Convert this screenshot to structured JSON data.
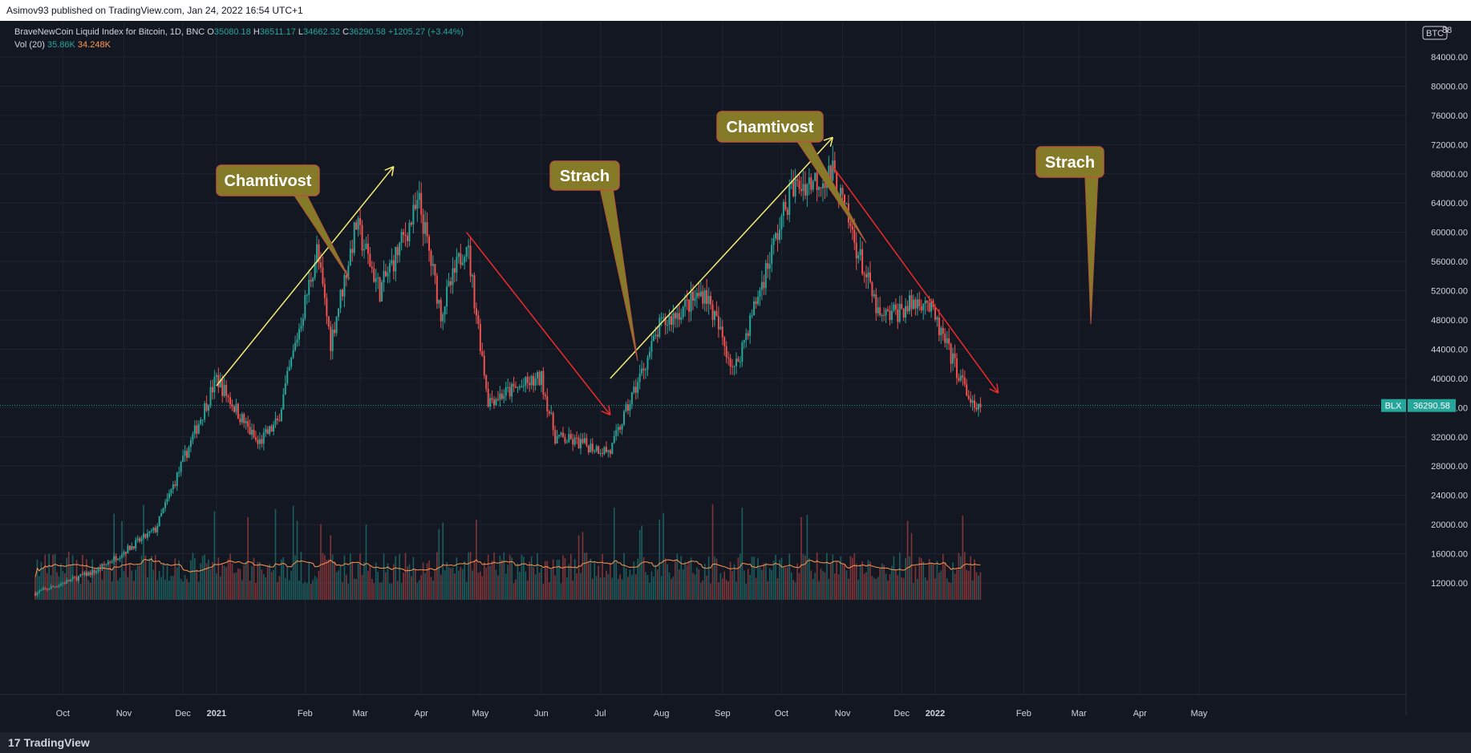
{
  "header": {
    "published": "Asimov93 published on TradingView.com, Jan 24, 2022 16:54 UTC+1"
  },
  "legend": {
    "symbol": "BraveNewCoin Liquid Index for Bitcoin, 1D, BNC",
    "o_label": "O",
    "o_value": "35080.18",
    "h_label": "H",
    "h_value": "36511.17",
    "l_label": "L",
    "l_value": "34662.32",
    "c_label": "C",
    "c_value": "36290.58",
    "change": "+1205.27 (+3.44%)",
    "vol_label": "Vol (20)",
    "vol_value": "35.86K",
    "vol_ma": "34.248K"
  },
  "price_badge": {
    "symbol": "BLX",
    "value": "36290.58"
  },
  "currency_badge": "BTC",
  "top_tick_partial": "88",
  "footer": {
    "brand": "TradingView",
    "brand_mark": "17"
  },
  "colors": {
    "background": "#131722",
    "up": "#26a69a",
    "down": "#ef5350",
    "grid": "#1f2331",
    "yellow_arrow": "#f5ec74",
    "red_arrow": "#ef2b2b",
    "callout_fill": "#857a28",
    "callout_border": "#b5573a",
    "vol_ma": "#ff9850"
  },
  "annotations": [
    {
      "text": "Chamtivost"
    },
    {
      "text": "Strach"
    },
    {
      "text": "Chamtivost"
    },
    {
      "text": "Strach"
    }
  ],
  "chart_data": {
    "type": "candlestick",
    "y_axis": {
      "min": 10000,
      "max": 88000,
      "ticks": [
        12000,
        16000,
        20000,
        24000,
        28000,
        32000,
        36000,
        40000,
        44000,
        48000,
        52000,
        56000,
        60000,
        64000,
        68000,
        72000,
        76000,
        80000,
        84000
      ],
      "tick_labels": [
        "12000.00",
        "16000.00",
        "20000.00",
        "24000.00",
        "28000.00",
        "32000.00",
        "36000.00",
        "40000.00",
        "44000.00",
        "48000.00",
        "52000.00",
        "56000.00",
        "60000.00",
        "64000.00",
        "68000.00",
        "72000.00",
        "76000.00",
        "80000.00",
        "84000.00"
      ]
    },
    "x_axis": {
      "labels": [
        "Oct",
        "Nov",
        "Dec",
        "2021",
        "Feb",
        "Mar",
        "Apr",
        "May",
        "Jun",
        "Jul",
        "Aug",
        "Sep",
        "Oct",
        "Nov",
        "Dec",
        "2022",
        "Feb",
        "Mar",
        "Apr",
        "May"
      ],
      "bold_labels": [
        "2021",
        "2022"
      ]
    },
    "close_price_keypoints": [
      {
        "month": "2020-10",
        "price": 10600
      },
      {
        "month": "2020-11",
        "price": 13700
      },
      {
        "month": "2020-12",
        "price": 19300
      },
      {
        "month": "2021-01",
        "price": 40000
      },
      {
        "month": "2021-01-22",
        "price": 31000
      },
      {
        "month": "2021-02",
        "price": 34000
      },
      {
        "month": "2021-02-21",
        "price": 57500
      },
      {
        "month": "2021-02-28",
        "price": 45000
      },
      {
        "month": "2021-03-13",
        "price": 61000
      },
      {
        "month": "2021-03-25",
        "price": 52000
      },
      {
        "month": "2021-04-14",
        "price": 64000
      },
      {
        "month": "2021-04-25",
        "price": 49000
      },
      {
        "month": "2021-05-08",
        "price": 59000
      },
      {
        "month": "2021-05-19",
        "price": 37000
      },
      {
        "month": "2021-06-15",
        "price": 40000
      },
      {
        "month": "2021-06-22",
        "price": 32000
      },
      {
        "month": "2021-07-20",
        "price": 30000
      },
      {
        "month": "2021-08-14",
        "price": 47000
      },
      {
        "month": "2021-09-06",
        "price": 52000
      },
      {
        "month": "2021-09-21",
        "price": 41000
      },
      {
        "month": "2021-10-20",
        "price": 66000
      },
      {
        "month": "2021-11-10",
        "price": 68000
      },
      {
        "month": "2021-12-04",
        "price": 48000
      },
      {
        "month": "2021-12-27",
        "price": 51000
      },
      {
        "month": "2022-01-22",
        "price": 35000
      },
      {
        "month": "2022-01-24",
        "price": 36290.58
      }
    ],
    "arrows": [
      {
        "color": "yellow",
        "from": {
          "date": "2021-01-01",
          "price": 39000
        },
        "to": {
          "date": "2021-04-01",
          "price": 69000
        }
      },
      {
        "color": "red",
        "from": {
          "date": "2021-05-08",
          "price": 60000
        },
        "to": {
          "date": "2021-07-20",
          "price": 35000
        }
      },
      {
        "color": "yellow",
        "from": {
          "date": "2021-07-20",
          "price": 40000
        },
        "to": {
          "date": "2021-11-10",
          "price": 73000
        }
      },
      {
        "color": "red",
        "from": {
          "date": "2021-11-10",
          "price": 69000
        },
        "to": {
          "date": "2022-02-02",
          "price": 38000
        }
      }
    ]
  }
}
